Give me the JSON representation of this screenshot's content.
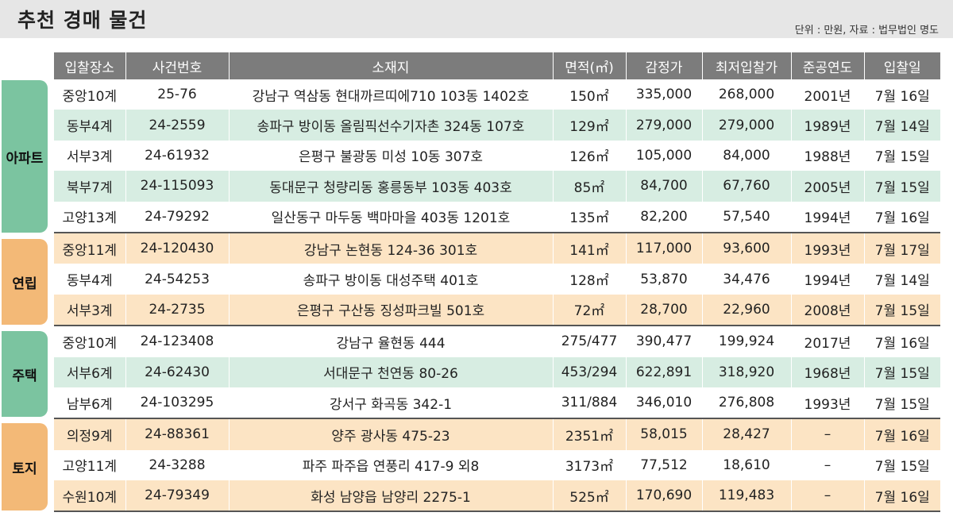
{
  "header": {
    "title": "추천 경매 물건",
    "source": "단위 : 만원, 자료 : 법무법인 명도"
  },
  "columns": [
    "입찰장소",
    "사건번호",
    "소재지",
    "면적(㎡)",
    "감정가",
    "최저입찰가",
    "준공연도",
    "입찰일"
  ],
  "categories": [
    {
      "label": "아파트",
      "color": "#7bc4a0"
    },
    {
      "label": "연립",
      "color": "#f3b977"
    },
    {
      "label": "주택",
      "color": "#7bc4a0"
    },
    {
      "label": "토지",
      "color": "#f3b977"
    }
  ],
  "rows": [
    {
      "place": "중앙10계",
      "case": "25-76",
      "address": "강남구 역삼동 현대까르띠에710 103동 1402호",
      "area": "150㎡",
      "appraisal": "335,000",
      "min_bid": "268,000",
      "built": "2001년",
      "date": "7월 16일"
    },
    {
      "place": "동부4계",
      "case": "24-2559",
      "address": "송파구 방이동 올림픽선수기자촌 324동 107호",
      "area": "129㎡",
      "appraisal": "279,000",
      "min_bid": "279,000",
      "built": "1989년",
      "date": "7월 14일"
    },
    {
      "place": "서부3계",
      "case": "24-61932",
      "address": "은평구 불광동 미성 10동 307호",
      "area": "126㎡",
      "appraisal": "105,000",
      "min_bid": "84,000",
      "built": "1988년",
      "date": "7월 15일"
    },
    {
      "place": "북부7계",
      "case": "24-115093",
      "address": "동대문구 청량리동 홍릉동부 103동 403호",
      "area": "85㎡",
      "appraisal": "84,700",
      "min_bid": "67,760",
      "built": "2005년",
      "date": "7월 15일"
    },
    {
      "place": "고양13계",
      "case": "24-79292",
      "address": "일산동구 마두동 백마마을 403동 1201호",
      "area": "135㎡",
      "appraisal": "82,200",
      "min_bid": "57,540",
      "built": "1994년",
      "date": "7월 16일"
    },
    {
      "place": "중앙11계",
      "case": "24-120430",
      "address": "강남구 논현동 124-36 301호",
      "area": "141㎡",
      "appraisal": "117,000",
      "min_bid": "93,600",
      "built": "1993년",
      "date": "7월 17일"
    },
    {
      "place": "동부4계",
      "case": "24-54253",
      "address": "송파구 방이동 대성주택 401호",
      "area": "128㎡",
      "appraisal": "53,870",
      "min_bid": "34,476",
      "built": "1994년",
      "date": "7월 14일"
    },
    {
      "place": "서부3계",
      "case": "24-2735",
      "address": "은평구 구산동 징성파크빌 501호",
      "area": "72㎡",
      "appraisal": "28,700",
      "min_bid": "22,960",
      "built": "2008년",
      "date": "7월 15일"
    },
    {
      "place": "중앙10계",
      "case": "24-123408",
      "address": "강남구 율현동 444",
      "area": "275/477",
      "appraisal": "390,477",
      "min_bid": "199,924",
      "built": "2017년",
      "date": "7월 16일"
    },
    {
      "place": "서부6계",
      "case": "24-62430",
      "address": "서대문구 천연동 80-26",
      "area": "453/294",
      "appraisal": "622,891",
      "min_bid": "318,920",
      "built": "1968년",
      "date": "7월 15일"
    },
    {
      "place": "남부6계",
      "case": "24-103295",
      "address": "강서구 화곡동 342-1",
      "area": "311/884",
      "appraisal": "346,010",
      "min_bid": "276,808",
      "built": "1993년",
      "date": "7월 15일"
    },
    {
      "place": "의정9계",
      "case": "24-88361",
      "address": "양주 광사동 475-23",
      "area": "2351㎡",
      "appraisal": "58,015",
      "min_bid": "28,427",
      "built": "–",
      "date": "7월 16일"
    },
    {
      "place": "고양11계",
      "case": "24-3288",
      "address": "파주 파주읍 연풍리 417-9 외8",
      "area": "3173㎡",
      "appraisal": "77,512",
      "min_bid": "18,610",
      "built": "–",
      "date": "7월 15일"
    },
    {
      "place": "수원10계",
      "case": "24-79349",
      "address": "화성 남양읍 남양리 2275-1",
      "area": "525㎡",
      "appraisal": "170,690",
      "min_bid": "119,483",
      "built": "–",
      "date": "7월 16일"
    }
  ]
}
